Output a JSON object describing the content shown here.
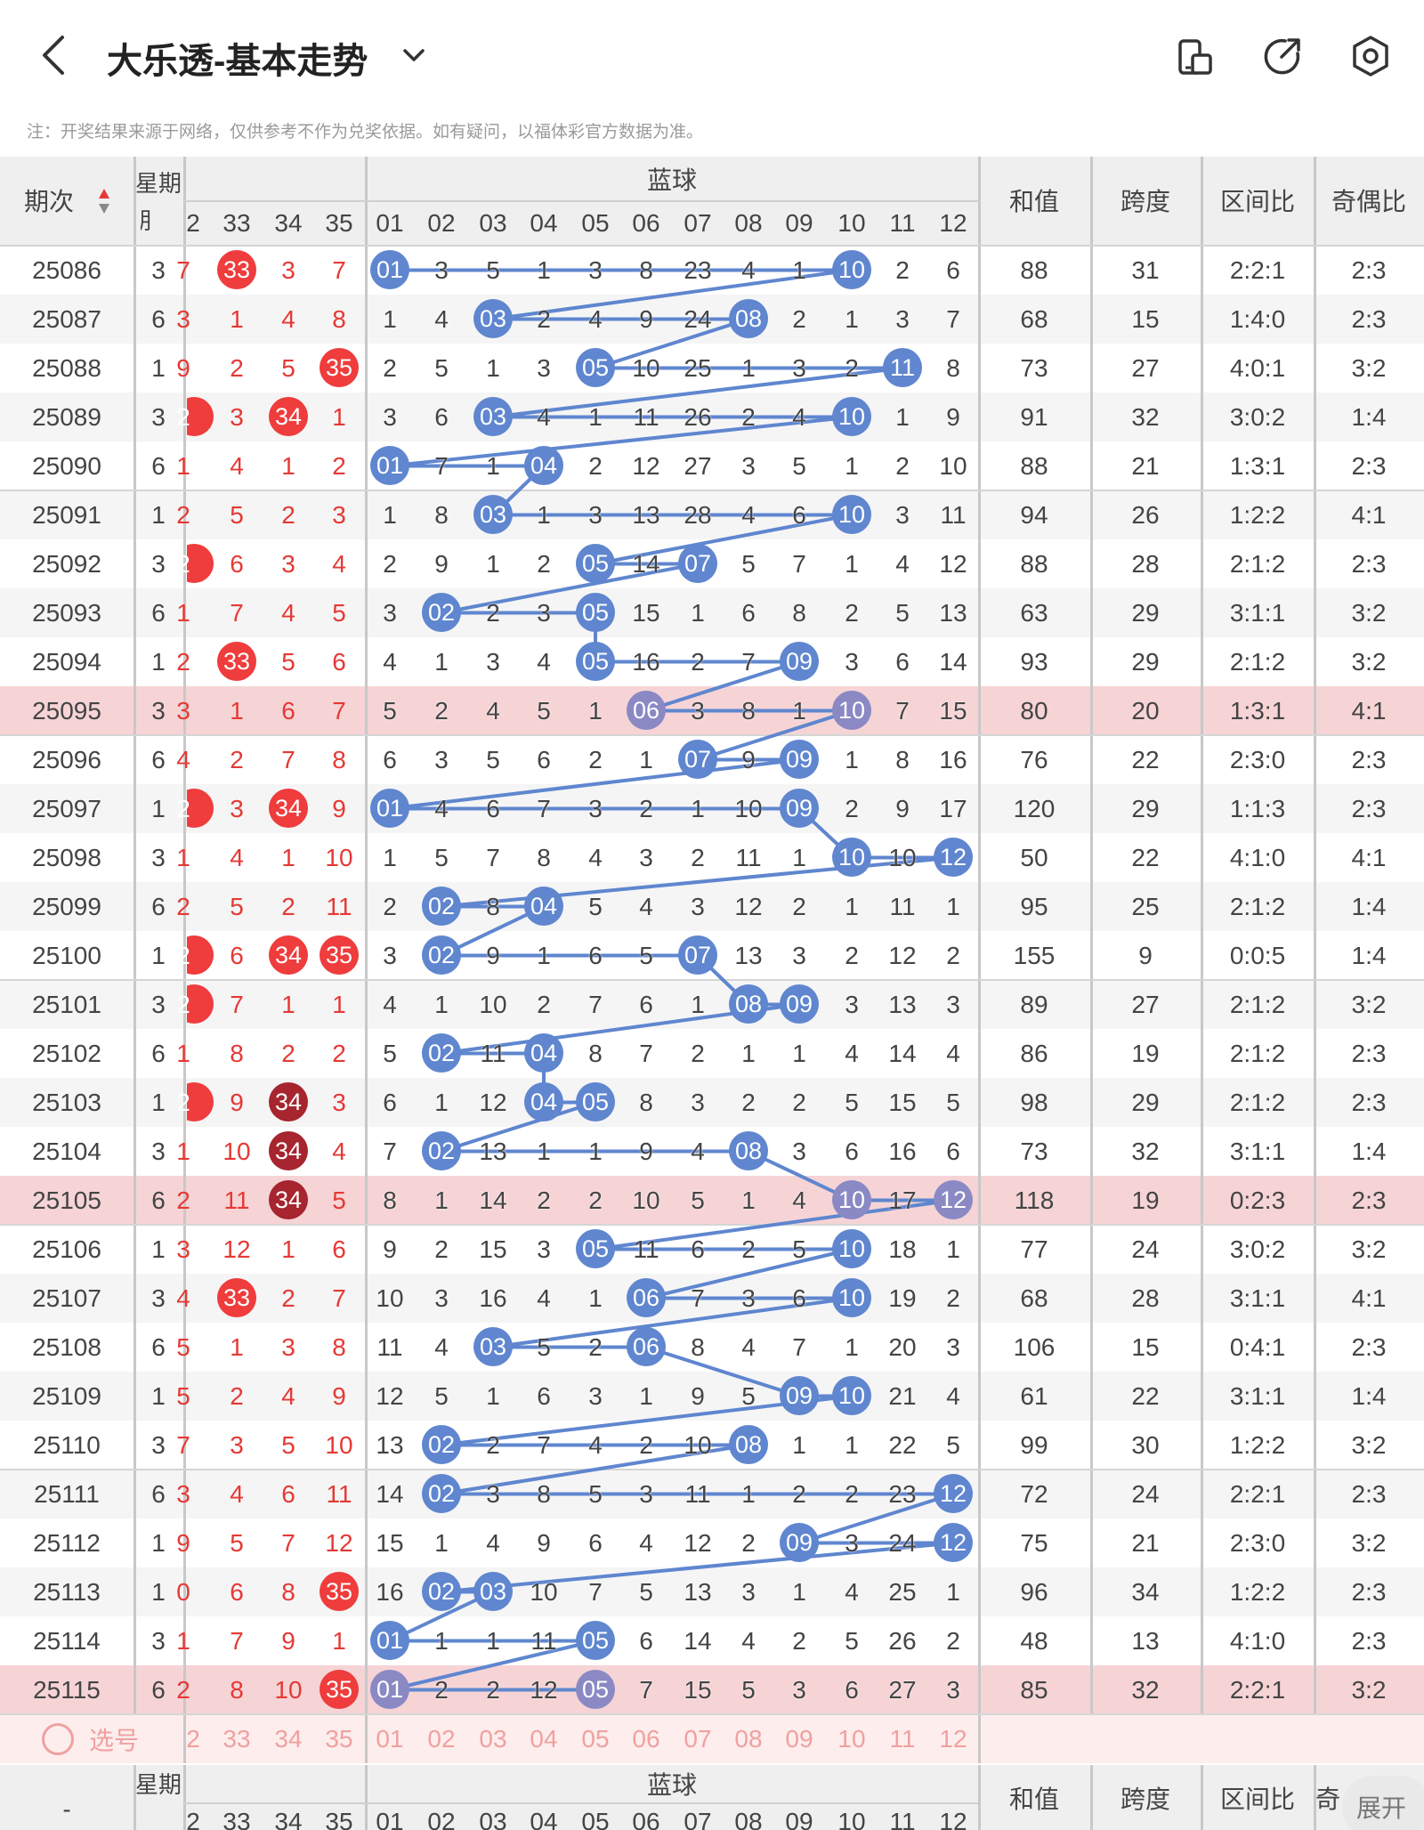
{
  "header": {
    "title": "大乐透-基本走势"
  },
  "note": "注：开奖结果来源于网络，仅供参考不作为兑奖依据。如有疑问，以福体彩官方数据为准。",
  "colors": {
    "blue_ball": "#5f86cf",
    "red_ball": "#ef3c3c",
    "dark_red_ball": "#a6252e",
    "muted_blue_ball": "#8a89c4",
    "line": "#5f86cf",
    "highlight_row": "#f6d4d6"
  },
  "table": {
    "col_issue": "期次",
    "col_week": "星期",
    "blue_group": "蓝球",
    "red_tail": [
      "2",
      "33",
      "34",
      "35"
    ],
    "blue_nums": [
      "01",
      "02",
      "03",
      "04",
      "05",
      "06",
      "07",
      "08",
      "09",
      "10",
      "11",
      "12"
    ],
    "col_sum": "和值",
    "col_span": "跨度",
    "col_zone": "区间比",
    "col_oddeven": "奇偶比",
    "rows": [
      {
        "issue": "25086",
        "wk": "3",
        "lead": "7",
        "r": [
          "33",
          "3",
          "7"
        ],
        "rh": [
          1,
          0,
          0
        ],
        "b": [
          "01",
          "3",
          "5",
          "1",
          "3",
          "8",
          "23",
          "4",
          "1",
          "10",
          "2",
          "6"
        ],
        "sum": "88",
        "span": "31",
        "zone": "2:2:1",
        "oe": "2:3"
      },
      {
        "issue": "25087",
        "wk": "6",
        "lead": "3",
        "r": [
          "1",
          "4",
          "8"
        ],
        "rh": [
          0,
          0,
          0
        ],
        "b": [
          "1",
          "4",
          "03",
          "2",
          "4",
          "9",
          "24",
          "08",
          "2",
          "1",
          "3",
          "7"
        ],
        "sum": "68",
        "span": "15",
        "zone": "1:4:0",
        "oe": "2:3"
      },
      {
        "issue": "25088",
        "wk": "1",
        "lead": "9",
        "r": [
          "2",
          "5",
          "35"
        ],
        "rh": [
          0,
          0,
          1
        ],
        "b": [
          "2",
          "5",
          "1",
          "3",
          "05",
          "10",
          "25",
          "1",
          "3",
          "2",
          "11",
          "8"
        ],
        "sum": "73",
        "span": "27",
        "zone": "4:0:1",
        "oe": "3:2"
      },
      {
        "issue": "25089",
        "wk": "3",
        "lead": "2",
        "lh": 1,
        "r": [
          "3",
          "34",
          "1"
        ],
        "rh": [
          0,
          1,
          0
        ],
        "b": [
          "3",
          "6",
          "03",
          "4",
          "1",
          "11",
          "26",
          "2",
          "4",
          "10",
          "1",
          "9"
        ],
        "sum": "91",
        "span": "32",
        "zone": "3:0:2",
        "oe": "1:4"
      },
      {
        "issue": "25090",
        "wk": "6",
        "lead": "1",
        "r": [
          "4",
          "1",
          "2"
        ],
        "rh": [
          0,
          0,
          0
        ],
        "b": [
          "01",
          "7",
          "1",
          "04",
          "2",
          "12",
          "27",
          "3",
          "5",
          "1",
          "2",
          "10"
        ],
        "sum": "88",
        "span": "21",
        "zone": "1:3:1",
        "oe": "2:3"
      },
      {
        "issue": "25091",
        "wk": "1",
        "lead": "2",
        "r": [
          "5",
          "2",
          "3"
        ],
        "rh": [
          0,
          0,
          0
        ],
        "b": [
          "1",
          "8",
          "03",
          "1",
          "3",
          "13",
          "28",
          "4",
          "6",
          "10",
          "3",
          "11"
        ],
        "sum": "94",
        "span": "26",
        "zone": "1:2:2",
        "oe": "4:1"
      },
      {
        "issue": "25092",
        "wk": "3",
        "lead": "2",
        "lh": 1,
        "r": [
          "6",
          "3",
          "4"
        ],
        "rh": [
          0,
          0,
          0
        ],
        "b": [
          "2",
          "9",
          "1",
          "2",
          "05",
          "14",
          "07",
          "5",
          "7",
          "1",
          "4",
          "12"
        ],
        "sum": "88",
        "span": "28",
        "zone": "2:1:2",
        "oe": "2:3"
      },
      {
        "issue": "25093",
        "wk": "6",
        "lead": "1",
        "r": [
          "7",
          "4",
          "5"
        ],
        "rh": [
          0,
          0,
          0
        ],
        "b": [
          "3",
          "02",
          "2",
          "3",
          "05",
          "15",
          "1",
          "6",
          "8",
          "2",
          "5",
          "13"
        ],
        "sum": "63",
        "span": "29",
        "zone": "3:1:1",
        "oe": "3:2"
      },
      {
        "issue": "25094",
        "wk": "1",
        "lead": "2",
        "r": [
          "33",
          "5",
          "6"
        ],
        "rh": [
          1,
          0,
          0
        ],
        "b": [
          "4",
          "1",
          "3",
          "4",
          "05",
          "16",
          "2",
          "7",
          "09",
          "3",
          "6",
          "14"
        ],
        "sum": "93",
        "span": "29",
        "zone": "2:1:2",
        "oe": "3:2"
      },
      {
        "issue": "25095",
        "wk": "3",
        "lead": "3",
        "hl": 1,
        "r": [
          "1",
          "6",
          "7"
        ],
        "rh": [
          0,
          0,
          0
        ],
        "b": [
          "5",
          "2",
          "4",
          "5",
          "1",
          "06",
          "3",
          "8",
          "1",
          "10",
          "7",
          "15"
        ],
        "sum": "80",
        "span": "20",
        "zone": "1:3:1",
        "oe": "4:1"
      },
      {
        "issue": "25096",
        "wk": "6",
        "lead": "4",
        "r": [
          "2",
          "7",
          "8"
        ],
        "rh": [
          0,
          0,
          0
        ],
        "b": [
          "6",
          "3",
          "5",
          "6",
          "2",
          "1",
          "07",
          "9",
          "09",
          "1",
          "8",
          "16"
        ],
        "sum": "76",
        "span": "22",
        "zone": "2:3:0",
        "oe": "2:3"
      },
      {
        "issue": "25097",
        "wk": "1",
        "lead": "2",
        "lh": 1,
        "r": [
          "3",
          "34",
          "9"
        ],
        "rh": [
          0,
          1,
          0
        ],
        "b": [
          "01",
          "4",
          "6",
          "7",
          "3",
          "2",
          "1",
          "10",
          "09",
          "2",
          "9",
          "17"
        ],
        "sum": "120",
        "span": "29",
        "zone": "1:1:3",
        "oe": "2:3"
      },
      {
        "issue": "25098",
        "wk": "3",
        "lead": "1",
        "r": [
          "4",
          "1",
          "10"
        ],
        "rh": [
          0,
          0,
          0
        ],
        "b": [
          "1",
          "5",
          "7",
          "8",
          "4",
          "3",
          "2",
          "11",
          "1",
          "10",
          "10",
          "12"
        ],
        "sum": "50",
        "span": "22",
        "zone": "4:1:0",
        "oe": "4:1"
      },
      {
        "issue": "25099",
        "wk": "6",
        "lead": "2",
        "r": [
          "5",
          "2",
          "11"
        ],
        "rh": [
          0,
          0,
          0
        ],
        "b": [
          "2",
          "02",
          "8",
          "04",
          "5",
          "4",
          "3",
          "12",
          "2",
          "1",
          "11",
          "1"
        ],
        "sum": "95",
        "span": "25",
        "zone": "2:1:2",
        "oe": "1:4"
      },
      {
        "issue": "25100",
        "wk": "1",
        "lead": "2",
        "lh": 1,
        "r": [
          "6",
          "34",
          "35"
        ],
        "rh": [
          0,
          1,
          1
        ],
        "b": [
          "3",
          "02",
          "9",
          "1",
          "6",
          "5",
          "07",
          "13",
          "3",
          "2",
          "12",
          "2"
        ],
        "sum": "155",
        "span": "9",
        "zone": "0:0:5",
        "oe": "1:4"
      },
      {
        "issue": "25101",
        "wk": "3",
        "lead": "2",
        "lh": 1,
        "r": [
          "7",
          "1",
          "1"
        ],
        "rh": [
          0,
          0,
          0
        ],
        "b": [
          "4",
          "1",
          "10",
          "2",
          "7",
          "6",
          "1",
          "08",
          "09",
          "3",
          "13",
          "3"
        ],
        "sum": "89",
        "span": "27",
        "zone": "2:1:2",
        "oe": "3:2"
      },
      {
        "issue": "25102",
        "wk": "6",
        "lead": "1",
        "r": [
          "8",
          "2",
          "2"
        ],
        "rh": [
          0,
          0,
          0
        ],
        "b": [
          "5",
          "02",
          "11",
          "04",
          "8",
          "7",
          "2",
          "1",
          "1",
          "4",
          "14",
          "4"
        ],
        "sum": "86",
        "span": "19",
        "zone": "2:1:2",
        "oe": "2:3"
      },
      {
        "issue": "25103",
        "wk": "1",
        "lead": "2",
        "lh": 1,
        "r": [
          "9",
          "34",
          "3"
        ],
        "rh": [
          0,
          2,
          0
        ],
        "b": [
          "6",
          "1",
          "12",
          "04",
          "05",
          "8",
          "3",
          "2",
          "2",
          "5",
          "15",
          "5"
        ],
        "sum": "98",
        "span": "29",
        "zone": "2:1:2",
        "oe": "2:3"
      },
      {
        "issue": "25104",
        "wk": "3",
        "lead": "1",
        "r": [
          "10",
          "34",
          "4"
        ],
        "rh": [
          0,
          2,
          0
        ],
        "b": [
          "7",
          "02",
          "13",
          "1",
          "1",
          "9",
          "4",
          "08",
          "3",
          "6",
          "16",
          "6"
        ],
        "sum": "73",
        "span": "32",
        "zone": "3:1:1",
        "oe": "1:4"
      },
      {
        "issue": "25105",
        "wk": "6",
        "lead": "2",
        "hl": 1,
        "r": [
          "11",
          "34",
          "5"
        ],
        "rh": [
          0,
          2,
          0
        ],
        "b": [
          "8",
          "1",
          "14",
          "2",
          "2",
          "10",
          "5",
          "1",
          "4",
          "10",
          "17",
          "12"
        ],
        "sum": "118",
        "span": "19",
        "zone": "0:2:3",
        "oe": "2:3"
      },
      {
        "issue": "25106",
        "wk": "1",
        "lead": "3",
        "r": [
          "12",
          "1",
          "6"
        ],
        "rh": [
          0,
          0,
          0
        ],
        "b": [
          "9",
          "2",
          "15",
          "3",
          "05",
          "11",
          "6",
          "2",
          "5",
          "10",
          "18",
          "1"
        ],
        "sum": "77",
        "span": "24",
        "zone": "3:0:2",
        "oe": "3:2"
      },
      {
        "issue": "25107",
        "wk": "3",
        "lead": "4",
        "r": [
          "33",
          "2",
          "7"
        ],
        "rh": [
          1,
          0,
          0
        ],
        "b": [
          "10",
          "3",
          "16",
          "4",
          "1",
          "06",
          "7",
          "3",
          "6",
          "10",
          "19",
          "2"
        ],
        "sum": "68",
        "span": "28",
        "zone": "3:1:1",
        "oe": "4:1"
      },
      {
        "issue": "25108",
        "wk": "6",
        "lead": "5",
        "r": [
          "1",
          "3",
          "8"
        ],
        "rh": [
          0,
          0,
          0
        ],
        "b": [
          "11",
          "4",
          "03",
          "5",
          "2",
          "06",
          "8",
          "4",
          "7",
          "1",
          "20",
          "3"
        ],
        "sum": "106",
        "span": "15",
        "zone": "0:4:1",
        "oe": "2:3"
      },
      {
        "issue": "25109",
        "wk": "1",
        "lead": "5",
        "r": [
          "2",
          "4",
          "9"
        ],
        "rh": [
          0,
          0,
          0
        ],
        "b": [
          "12",
          "5",
          "1",
          "6",
          "3",
          "1",
          "9",
          "5",
          "09",
          "10",
          "21",
          "4"
        ],
        "sum": "61",
        "span": "22",
        "zone": "3:1:1",
        "oe": "1:4"
      },
      {
        "issue": "25110",
        "wk": "3",
        "lead": "7",
        "r": [
          "3",
          "5",
          "10"
        ],
        "rh": [
          0,
          0,
          0
        ],
        "b": [
          "13",
          "02",
          "2",
          "7",
          "4",
          "2",
          "10",
          "08",
          "1",
          "1",
          "22",
          "5"
        ],
        "sum": "99",
        "span": "30",
        "zone": "1:2:2",
        "oe": "3:2"
      },
      {
        "issue": "25111",
        "wk": "6",
        "lead": "3",
        "r": [
          "4",
          "6",
          "11"
        ],
        "rh": [
          0,
          0,
          0
        ],
        "b": [
          "14",
          "02",
          "3",
          "8",
          "5",
          "3",
          "11",
          "1",
          "2",
          "2",
          "23",
          "12"
        ],
        "sum": "72",
        "span": "24",
        "zone": "2:2:1",
        "oe": "2:3"
      },
      {
        "issue": "25112",
        "wk": "1",
        "lead": "9",
        "r": [
          "5",
          "7",
          "12"
        ],
        "rh": [
          0,
          0,
          0
        ],
        "b": [
          "15",
          "1",
          "4",
          "9",
          "6",
          "4",
          "12",
          "2",
          "09",
          "3",
          "24",
          "12"
        ],
        "sum": "75",
        "span": "21",
        "zone": "2:3:0",
        "oe": "3:2"
      },
      {
        "issue": "25113",
        "wk": "1",
        "lead": "0",
        "r": [
          "6",
          "8",
          "35"
        ],
        "rh": [
          0,
          0,
          1
        ],
        "b": [
          "16",
          "02",
          "03",
          "10",
          "7",
          "5",
          "13",
          "3",
          "1",
          "4",
          "25",
          "1"
        ],
        "sum": "96",
        "span": "34",
        "zone": "1:2:2",
        "oe": "2:3"
      },
      {
        "issue": "25114",
        "wk": "3",
        "lead": "1",
        "r": [
          "7",
          "9",
          "1"
        ],
        "rh": [
          0,
          0,
          0
        ],
        "b": [
          "01",
          "1",
          "1",
          "11",
          "05",
          "6",
          "14",
          "4",
          "2",
          "5",
          "26",
          "2"
        ],
        "sum": "48",
        "span": "13",
        "zone": "4:1:0",
        "oe": "2:3"
      },
      {
        "issue": "25115",
        "wk": "6",
        "lead": "2",
        "hl": 1,
        "r": [
          "8",
          "10",
          "35"
        ],
        "rh": [
          0,
          0,
          1
        ],
        "b": [
          "01",
          "2",
          "2",
          "12",
          "05",
          "7",
          "15",
          "5",
          "3",
          "6",
          "27",
          "3"
        ],
        "sum": "85",
        "span": "32",
        "zone": "2:2:1",
        "oe": "3:2"
      }
    ],
    "hits": [
      [
        0,
        9
      ],
      [
        2,
        7
      ],
      [
        4,
        10
      ],
      [
        2,
        9
      ],
      [
        0,
        3
      ],
      [
        2,
        9
      ],
      [
        4,
        6
      ],
      [
        1,
        4
      ],
      [
        4,
        8
      ],
      [
        5,
        9
      ],
      [
        6,
        8
      ],
      [
        0,
        8
      ],
      [
        9,
        11
      ],
      [
        1,
        3
      ],
      [
        1,
        6
      ],
      [
        7,
        8
      ],
      [
        1,
        3
      ],
      [
        3,
        4
      ],
      [
        1,
        7
      ],
      [
        9,
        11
      ],
      [
        4,
        9
      ],
      [
        5,
        9
      ],
      [
        2,
        5
      ],
      [
        8,
        9
      ],
      [
        1,
        7
      ],
      [
        1,
        11
      ],
      [
        8,
        11
      ],
      [
        1,
        2
      ],
      [
        0,
        4
      ],
      [
        0,
        4
      ]
    ],
    "select_label": "选号",
    "footer_head": {
      "left": "-",
      "week": "星期",
      "blue_group": "蓝球",
      "sum": "和值",
      "span": "跨度",
      "zone": "区间比",
      "partial": "奇"
    }
  },
  "fab_label": "展开"
}
